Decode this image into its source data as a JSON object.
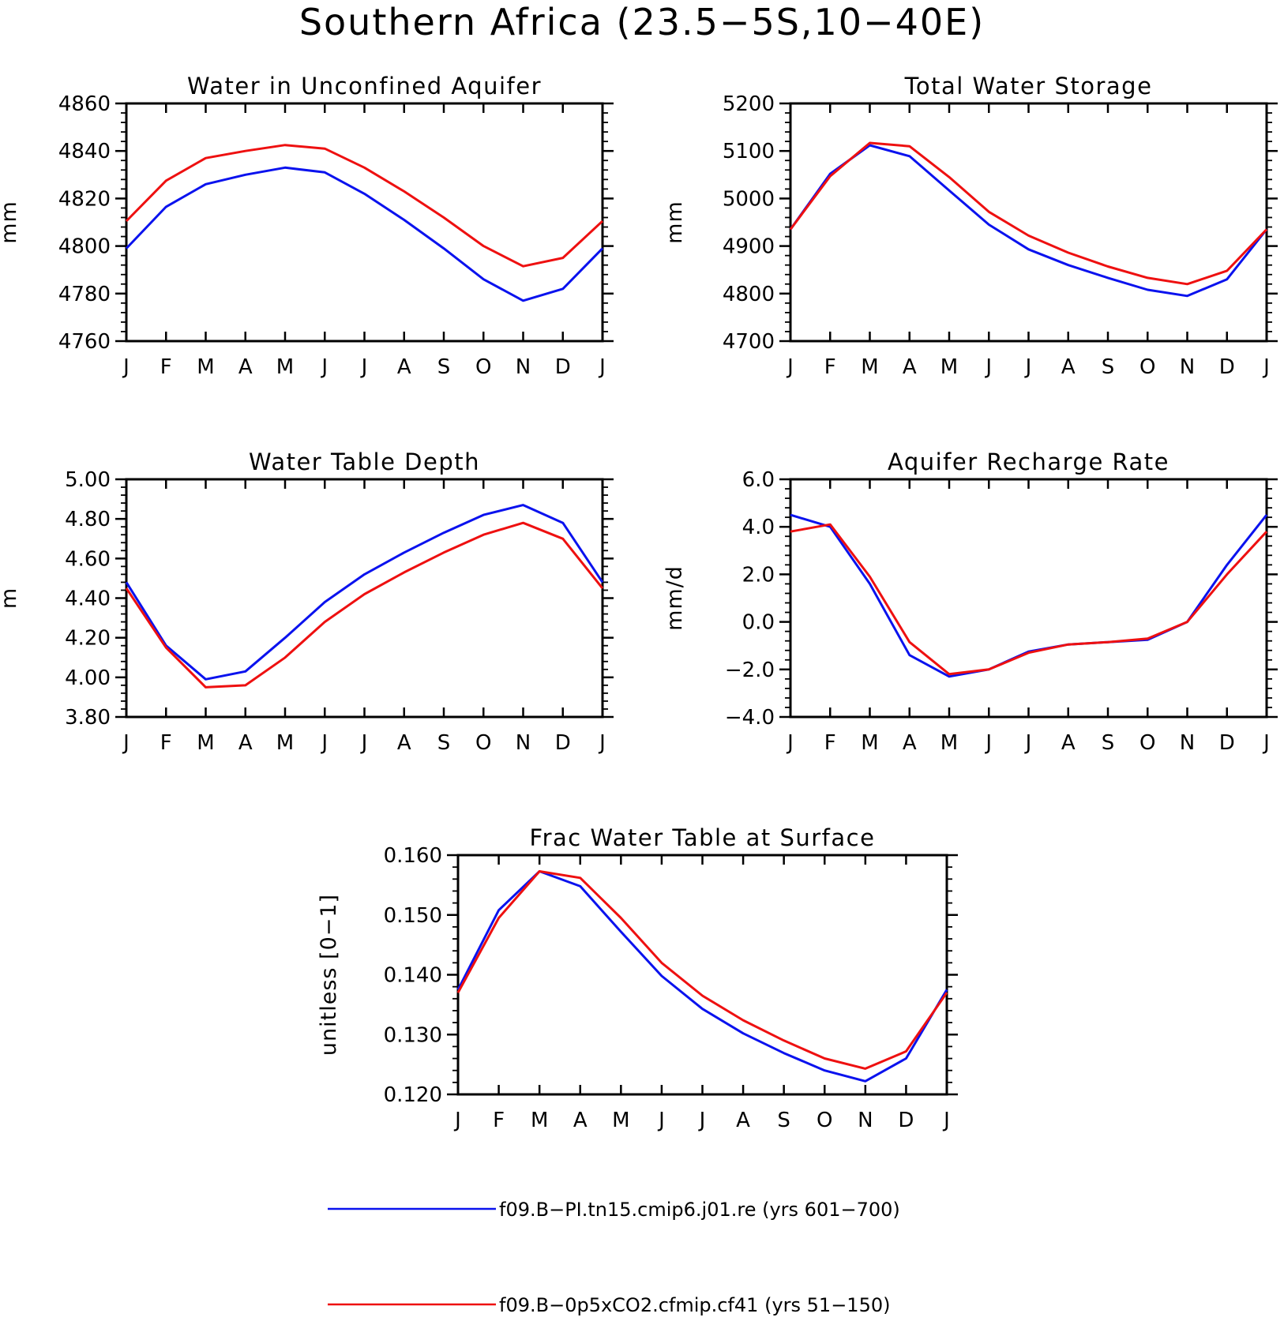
{
  "page_title": "Southern Africa (23.5−5S,10−40E)",
  "colors": {
    "series_1": "#0a12ee",
    "series_2": "#ee1010"
  },
  "legend": [
    {
      "label": "f09.B−PI.tn15.cmip6.j01.re (yrs 601−700)",
      "color": "#0a12ee"
    },
    {
      "label": "f09.B−0p5xCO2.cfmip.cf41 (yrs 51−150)",
      "color": "#ee1010"
    }
  ],
  "chart_data": [
    {
      "type": "line",
      "title": "Water in Unconfined Aquifer",
      "xlabel": "",
      "ylabel": "mm",
      "categories": [
        "J",
        "F",
        "M",
        "A",
        "M",
        "J",
        "J",
        "A",
        "S",
        "O",
        "N",
        "D",
        "J"
      ],
      "ylim": [
        4760,
        4860
      ],
      "yticks": [
        "4760",
        "4780",
        "4800",
        "4820",
        "4840",
        "4860"
      ],
      "series": [
        {
          "name": "f09.B−PI.tn15.cmip6.j01.re (yrs 601−700)",
          "color": "#0a12ee",
          "values": [
            4799,
            4816.5,
            4826,
            4830,
            4833,
            4831,
            4822,
            4811,
            4799,
            4786,
            4777,
            4782,
            4799
          ]
        },
        {
          "name": "f09.B−0p5xCO2.cfmip.cf41 (yrs 51−150)",
          "color": "#ee1010",
          "values": [
            4810.5,
            4827.5,
            4837,
            4840,
            4842.5,
            4841,
            4833,
            4823,
            4812,
            4800,
            4791.5,
            4795,
            4810.5
          ]
        }
      ]
    },
    {
      "type": "line",
      "title": "Total Water Storage",
      "xlabel": "",
      "ylabel": "mm",
      "categories": [
        "J",
        "F",
        "M",
        "A",
        "M",
        "J",
        "J",
        "A",
        "S",
        "O",
        "N",
        "D",
        "J"
      ],
      "ylim": [
        4700,
        5200
      ],
      "yticks": [
        "4700",
        "4800",
        "4900",
        "5000",
        "5100",
        "5200"
      ],
      "series": [
        {
          "name": "f09.B−PI.tn15.cmip6.j01.re (yrs 601−700)",
          "color": "#0a12ee",
          "values": [
            4935,
            5052,
            5112,
            5089,
            5017,
            4945,
            4893,
            4860,
            4833,
            4808,
            4795,
            4830,
            4935
          ]
        },
        {
          "name": "f09.B−0p5xCO2.cfmip.cf41 (yrs 51−150)",
          "color": "#ee1010",
          "values": [
            4935,
            5047,
            5117,
            5110,
            5045,
            4972,
            4922,
            4886,
            4857,
            4833,
            4820,
            4848,
            4935
          ]
        }
      ]
    },
    {
      "type": "line",
      "title": "Water Table Depth",
      "xlabel": "",
      "ylabel": "m",
      "categories": [
        "J",
        "F",
        "M",
        "A",
        "M",
        "J",
        "J",
        "A",
        "S",
        "O",
        "N",
        "D",
        "J"
      ],
      "ylim": [
        3.8,
        5.0
      ],
      "yticks": [
        "3.80",
        "4.00",
        "4.20",
        "4.40",
        "4.60",
        "4.80",
        "5.00"
      ],
      "series": [
        {
          "name": "f09.B−PI.tn15.cmip6.j01.re (yrs 601−700)",
          "color": "#0a12ee",
          "values": [
            4.48,
            4.16,
            3.99,
            4.03,
            4.2,
            4.38,
            4.52,
            4.63,
            4.73,
            4.82,
            4.87,
            4.78,
            4.48
          ]
        },
        {
          "name": "f09.B−0p5xCO2.cfmip.cf41 (yrs 51−150)",
          "color": "#ee1010",
          "values": [
            4.45,
            4.15,
            3.95,
            3.96,
            4.1,
            4.28,
            4.42,
            4.53,
            4.63,
            4.72,
            4.78,
            4.7,
            4.45
          ]
        }
      ]
    },
    {
      "type": "line",
      "title": "Aquifer Recharge Rate",
      "xlabel": "",
      "ylabel": "mm/d",
      "categories": [
        "J",
        "F",
        "M",
        "A",
        "M",
        "J",
        "J",
        "A",
        "S",
        "O",
        "N",
        "D",
        "J"
      ],
      "ylim": [
        -4.0,
        6.0
      ],
      "yticks": [
        "−4.0",
        "−2.0",
        "0.0",
        "2.0",
        "4.0",
        "6.0"
      ],
      "series": [
        {
          "name": "f09.B−PI.tn15.cmip6.j01.re (yrs 601−700)",
          "color": "#0a12ee",
          "values": [
            4.5,
            4.0,
            1.6,
            -1.4,
            -2.3,
            -2.0,
            -1.25,
            -0.95,
            -0.85,
            -0.75,
            0.0,
            2.4,
            4.5
          ]
        },
        {
          "name": "f09.B−0p5xCO2.cfmip.cf41 (yrs 51−150)",
          "color": "#ee1010",
          "values": [
            3.8,
            4.1,
            1.9,
            -0.85,
            -2.2,
            -2.0,
            -1.3,
            -0.95,
            -0.85,
            -0.7,
            0.0,
            2.0,
            3.8
          ]
        }
      ]
    },
    {
      "type": "line",
      "title": "Frac Water Table at Surface",
      "xlabel": "",
      "ylabel": "unitless [0−1]",
      "categories": [
        "J",
        "F",
        "M",
        "A",
        "M",
        "J",
        "J",
        "A",
        "S",
        "O",
        "N",
        "D",
        "J"
      ],
      "ylim": [
        0.12,
        0.16
      ],
      "yticks": [
        "0.120",
        "0.130",
        "0.140",
        "0.150",
        "0.160"
      ],
      "series": [
        {
          "name": "f09.B−PI.tn15.cmip6.j01.re (yrs 601−700)",
          "color": "#0a12ee",
          "values": [
            0.1375,
            0.1508,
            0.1573,
            0.1548,
            0.1472,
            0.1398,
            0.1343,
            0.1302,
            0.1269,
            0.124,
            0.1222,
            0.126,
            0.1375
          ]
        },
        {
          "name": "f09.B−0p5xCO2.cfmip.cf41 (yrs 51−150)",
          "color": "#ee1010",
          "values": [
            0.137,
            0.1495,
            0.1573,
            0.1562,
            0.1495,
            0.142,
            0.1365,
            0.1324,
            0.129,
            0.126,
            0.1243,
            0.1272,
            0.137
          ]
        }
      ]
    }
  ]
}
